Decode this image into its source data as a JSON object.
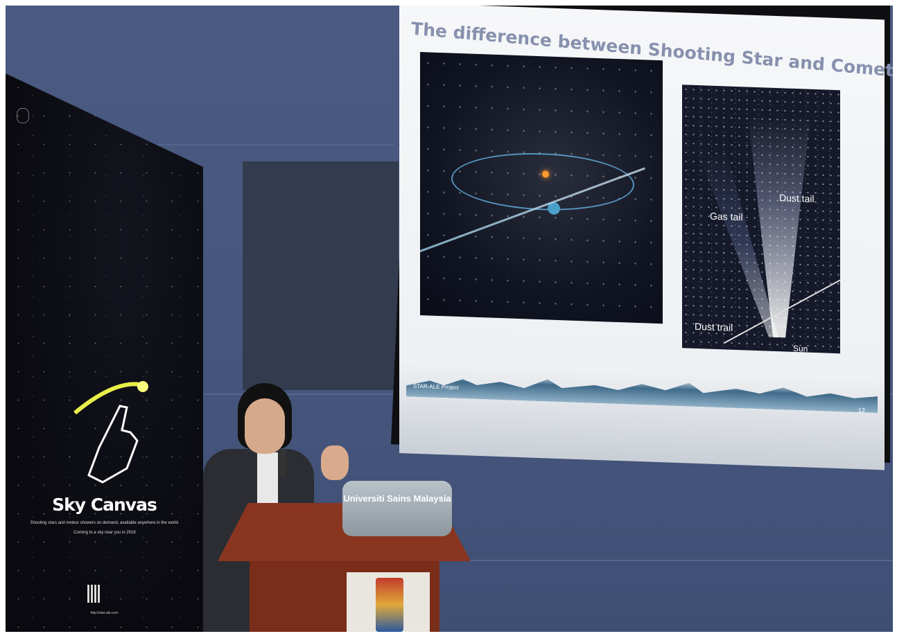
{
  "slide": {
    "title": "The difference between Shooting Star and Comets",
    "labels": {
      "gas_tail": "Gas tail",
      "dust_tail": "Dust tail",
      "dust_trail": "Dust trail",
      "sun": "Sun"
    },
    "footer": "STAR-ALE Project",
    "page_number": "12"
  },
  "banner": {
    "title": "Sky Canvas",
    "subtitle": "Shooting stars and meteor showers on demand, available anywhere in the world.",
    "tagline": "Coming to a sky near you in 2018",
    "url": "http://star-ale.com"
  },
  "podium": {
    "plate_text": "Universiti Sains Malaysia"
  },
  "colors": {
    "wall": "#45557c",
    "slide_title": "#8791ae",
    "podium": "#8a3520"
  }
}
